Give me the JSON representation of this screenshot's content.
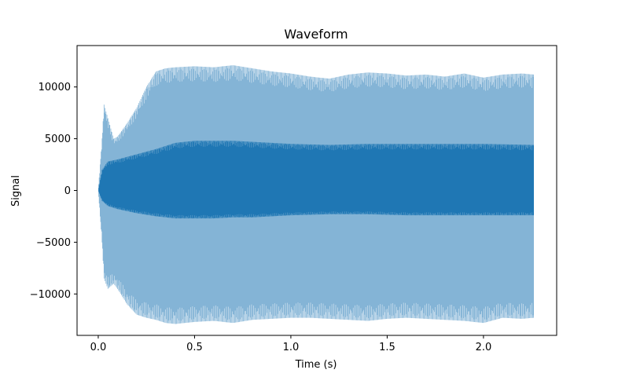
{
  "chart_data": {
    "type": "line",
    "title": "Waveform",
    "xlabel": "Time (s)",
    "ylabel": "Signal",
    "xlim": [
      -0.11,
      2.38
    ],
    "ylim": [
      -14000,
      14000
    ],
    "xticks": [
      0.0,
      0.5,
      1.0,
      1.5,
      2.0
    ],
    "xtick_labels": [
      "0.0",
      "0.5",
      "1.0",
      "1.5",
      "2.0"
    ],
    "yticks": [
      -10000,
      -5000,
      0,
      5000,
      10000
    ],
    "ytick_labels": [
      "−10000",
      "−5000",
      "0",
      "5000",
      "10000"
    ],
    "grid": false,
    "color": "#1f77b4",
    "series": [
      {
        "role": "outer-envelope",
        "opacity": 0.55,
        "x": [
          0.0,
          0.02,
          0.03,
          0.05,
          0.08,
          0.1,
          0.15,
          0.2,
          0.25,
          0.3,
          0.35,
          0.4,
          0.5,
          0.6,
          0.7,
          0.8,
          0.9,
          1.0,
          1.1,
          1.2,
          1.3,
          1.4,
          1.5,
          1.6,
          1.7,
          1.8,
          1.9,
          2.0,
          2.1,
          2.2,
          2.26
        ],
        "upper": [
          0,
          5000,
          8300,
          7000,
          5000,
          5200,
          6500,
          8000,
          10000,
          11500,
          11800,
          11900,
          12000,
          11900,
          12100,
          11800,
          11500,
          11300,
          11000,
          10800,
          11200,
          11400,
          11300,
          11100,
          11200,
          11000,
          11300,
          10900,
          11200,
          11300,
          11200
        ],
        "lower": [
          0,
          -5000,
          -8500,
          -9500,
          -9000,
          -9500,
          -11000,
          -12000,
          -12300,
          -12500,
          -12800,
          -12900,
          -12700,
          -12600,
          -12800,
          -12500,
          -12400,
          -12300,
          -12300,
          -12400,
          -12500,
          -12600,
          -12400,
          -12300,
          -12400,
          -12500,
          -12600,
          -12800,
          -12300,
          -12400,
          -12300
        ]
      },
      {
        "role": "inner-envelope",
        "opacity": 1.0,
        "x": [
          0.0,
          0.02,
          0.05,
          0.1,
          0.2,
          0.3,
          0.4,
          0.5,
          0.6,
          0.7,
          0.8,
          0.9,
          1.0,
          1.2,
          1.4,
          1.6,
          1.8,
          2.0,
          2.26
        ],
        "upper": [
          0,
          2000,
          2800,
          3000,
          3500,
          4000,
          4600,
          4800,
          4800,
          4800,
          4700,
          4600,
          4500,
          4400,
          4500,
          4500,
          4500,
          4500,
          4400
        ],
        "lower": [
          0,
          -1000,
          -1500,
          -1800,
          -2200,
          -2500,
          -2700,
          -2700,
          -2700,
          -2600,
          -2600,
          -2500,
          -2400,
          -2300,
          -2300,
          -2400,
          -2400,
          -2400,
          -2400
        ]
      }
    ]
  }
}
